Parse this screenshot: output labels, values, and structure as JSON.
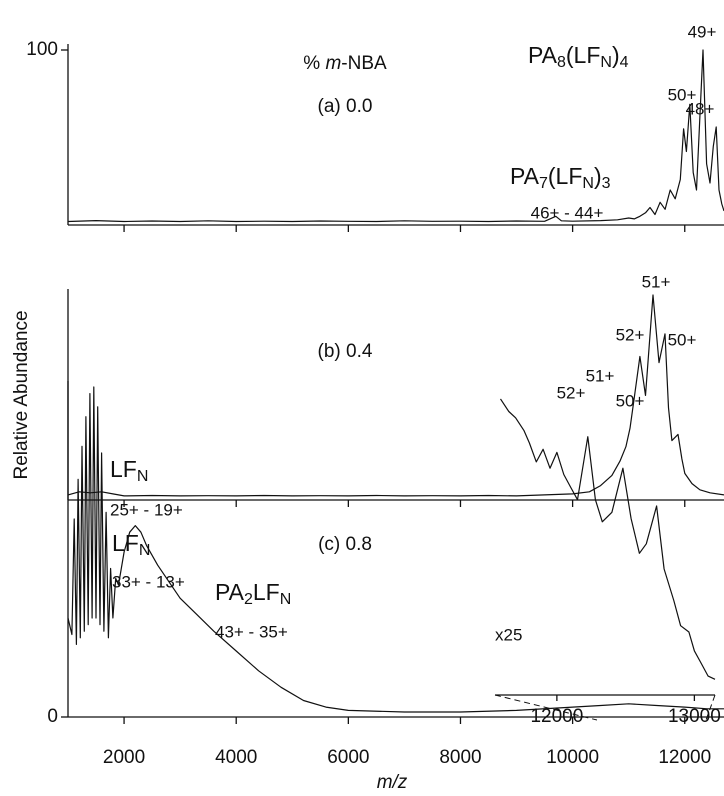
{
  "chart_data": {
    "type": "line",
    "xlabel": "m/z",
    "ylabel": "Relative Abundance",
    "xlim": [
      1000,
      12700
    ],
    "xticks": [
      2000,
      4000,
      6000,
      8000,
      10000,
      12000
    ],
    "legend_title": [
      "% ",
      "m",
      "-NBA"
    ],
    "panels": [
      {
        "label": "(a) 0.0",
        "color": "#111111",
        "ylim": [
          0,
          100
        ],
        "yticks": [
          100
        ],
        "species": [
          {
            "parts": [
              "PA",
              "8",
              "(LF",
              "N",
              ")",
              "4"
            ]
          },
          {
            "parts": [
              "PA",
              "7",
              "(LF",
              "N",
              ")",
              "3"
            ],
            "charges": "46+ - 44+"
          }
        ],
        "peak_labels": [
          "50+",
          "49+",
          "48+"
        ],
        "x": [
          1000,
          1500,
          2000,
          2500,
          3000,
          3500,
          4000,
          4500,
          5000,
          5500,
          6000,
          6500,
          7000,
          7500,
          8000,
          8500,
          9000,
          9500,
          9700,
          9800,
          10000,
          10500,
          10800,
          11000,
          11100,
          11200,
          11300,
          11380,
          11470,
          11560,
          11650,
          11740,
          11830,
          11920,
          11980,
          12030,
          12090,
          12150,
          12210,
          12270,
          12325,
          12390,
          12450,
          12510,
          12560,
          12610,
          12660,
          12700
        ],
        "values": [
          2,
          2.5,
          2,
          2.3,
          2,
          2.4,
          2,
          2.2,
          2,
          2.3,
          2.1,
          2,
          2.4,
          2.1,
          2.2,
          2,
          2.3,
          2.1,
          5,
          2.4,
          2.2,
          2.5,
          3,
          4,
          3.5,
          5,
          7,
          10,
          6,
          13,
          9,
          20,
          15,
          26,
          55,
          42,
          69,
          30,
          20,
          62,
          100,
          35,
          24,
          45,
          56,
          20,
          12,
          8
        ]
      },
      {
        "label": "(b) 0.4",
        "color": "#111111",
        "ylim": [
          0,
          100
        ],
        "species": [
          {
            "parts": [
              "LF",
              "N"
            ],
            "charges": "25+ - 19+"
          }
        ],
        "peak_labels": [
          "52+",
          "51+",
          "50+"
        ],
        "x": [
          1000,
          1200,
          1400,
          1600,
          1800,
          2000,
          2500,
          3000,
          3500,
          4000,
          4500,
          5000,
          5500,
          6000,
          6500,
          7000,
          7500,
          8000,
          8500,
          9000,
          9500,
          10000,
          10300,
          10500,
          10700,
          10845,
          10950,
          11023,
          11100,
          11200,
          11300,
          11433,
          11540,
          11647,
          11710,
          11770,
          11880,
          11950,
          12000,
          12130,
          12270,
          12450,
          12700
        ],
        "values": [
          2.5,
          4,
          3.5,
          4,
          3,
          2,
          2.2,
          2,
          2.1,
          2,
          2.2,
          2,
          2.1,
          2,
          2.2,
          2,
          2.1,
          2,
          2.2,
          2,
          2.5,
          3,
          4,
          7,
          12,
          19,
          26,
          35,
          50,
          70,
          51,
          100,
          67,
          81,
          45,
          29,
          32,
          20,
          13,
          8,
          5,
          3.5,
          2.5
        ]
      },
      {
        "label": "(c) 0.8",
        "color": "#111111",
        "ylim": [
          0,
          100
        ],
        "yticks": [
          0
        ],
        "species": [
          {
            "parts": [
              "LF",
              "N"
            ],
            "charges": "33+ - 13+"
          },
          {
            "parts": [
              "PA",
              "2",
              "LF",
              "N"
            ],
            "charges": "43+ - 35+"
          }
        ],
        "x": [
          1000,
          1070,
          1110,
          1150,
          1180,
          1220,
          1250,
          1290,
          1320,
          1360,
          1390,
          1430,
          1460,
          1500,
          1530,
          1570,
          1600,
          1640,
          1680,
          1720,
          1760,
          1800,
          1850,
          1900,
          1950,
          2000,
          2100,
          2200,
          2300,
          2400,
          2600,
          2800,
          3000,
          3300,
          3600,
          4000,
          4400,
          4800,
          5200,
          5600,
          6000,
          7000,
          8000,
          9000,
          10000,
          10500,
          11000,
          11500,
          12000,
          12400,
          12700
        ],
        "values": [
          30,
          25,
          60,
          22,
          72,
          24,
          82,
          26,
          91,
          28,
          98,
          30,
          100,
          30,
          94,
          28,
          80,
          26,
          62,
          24,
          45,
          30,
          42,
          40,
          45,
          50,
          56,
          58,
          56,
          52,
          46,
          41,
          36,
          31,
          26,
          20,
          14,
          9,
          5,
          3,
          2,
          1.5,
          1.5,
          2,
          3,
          3.5,
          4,
          3.5,
          3,
          2.5,
          2.5
        ]
      }
    ],
    "inset": {
      "label": "x25",
      "color": "#111111",
      "xlim": [
        11550,
        13150
      ],
      "ylim": [
        0,
        100
      ],
      "xticks": [
        12000,
        13000
      ],
      "peak_labels": [
        "52+",
        "51+",
        "50+"
      ],
      "x": [
        11590,
        11650,
        11700,
        11760,
        11800,
        11850,
        11900,
        11950,
        12000,
        12050,
        12100,
        12150,
        12225,
        12280,
        12330,
        12400,
        12480,
        12540,
        12600,
        12650,
        12725,
        12780,
        12850,
        12900,
        12960,
        13000,
        13050,
        13100,
        13150
      ],
      "values": [
        94,
        90,
        88,
        84,
        80,
        74,
        78,
        72,
        77,
        70,
        66,
        62,
        82,
        62,
        55,
        58,
        72,
        56,
        45,
        48,
        60,
        40,
        30,
        22,
        20,
        14,
        10,
        6,
        5
      ]
    }
  }
}
